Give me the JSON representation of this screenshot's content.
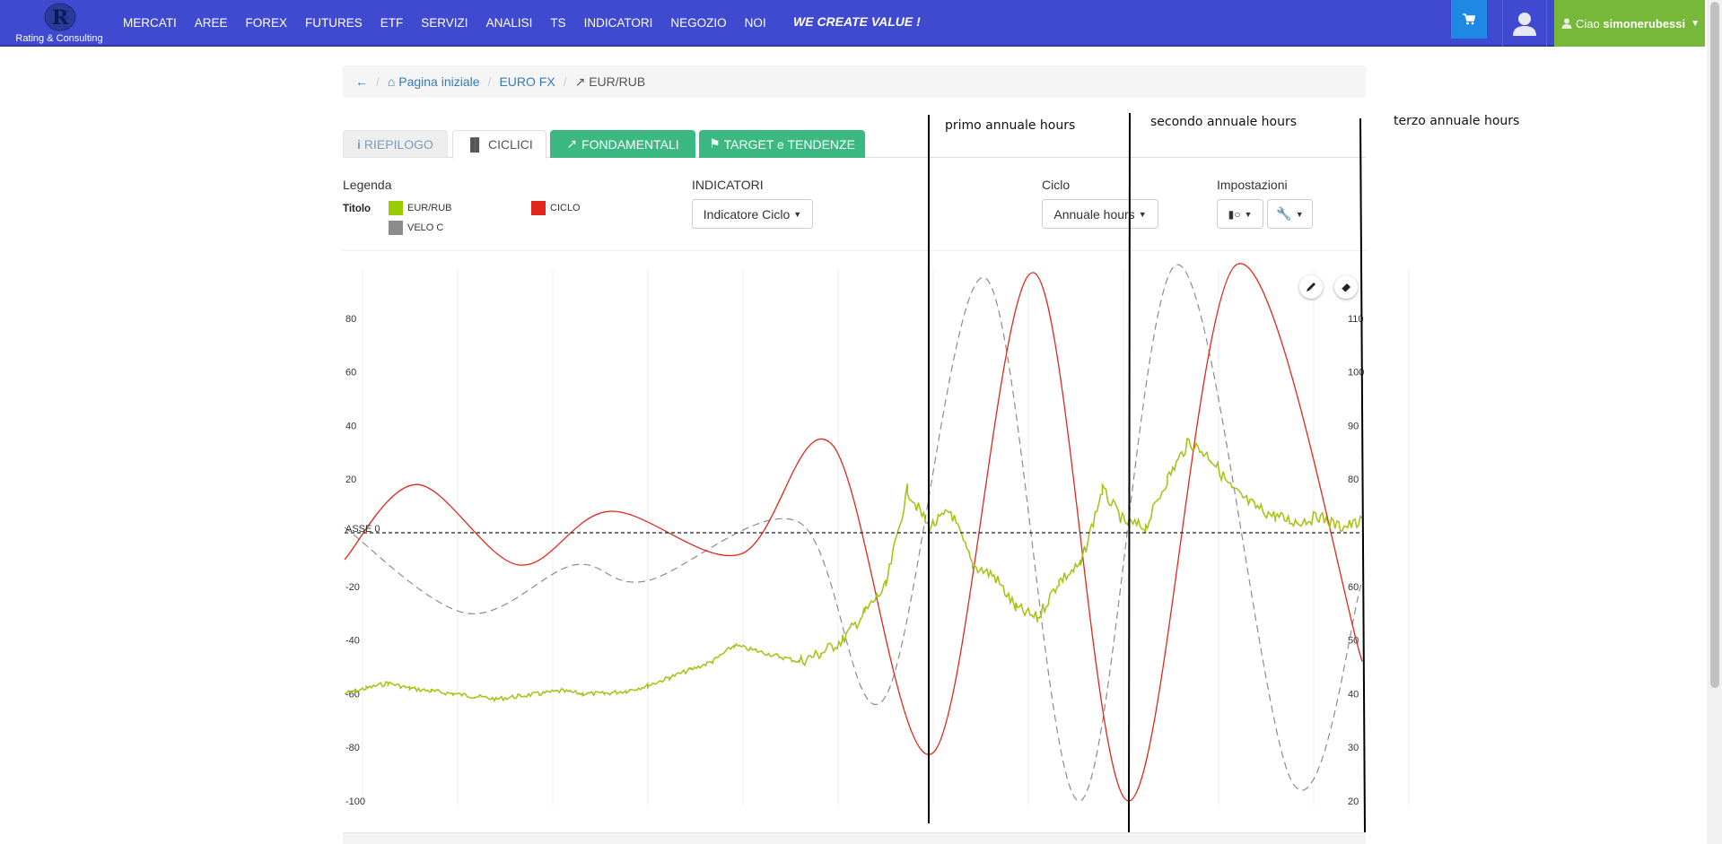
{
  "navbar": {
    "logo_text": "Rating & Consulting",
    "menu": [
      "MERCATI",
      "AREE",
      "FOREX",
      "FUTURES",
      "ETF",
      "SERVIZI",
      "ANALISI",
      "TS",
      "INDICATORI",
      "NEGOZIO",
      "NOI"
    ],
    "slogan": "WE CREATE VALUE !",
    "user_greeting": "Ciao",
    "username": "simonerubessi",
    "cart_icon": "shopping-cart-icon",
    "avatar_icon": "user-avatar-icon"
  },
  "breadcrumb": {
    "back_icon": "arrow-left-icon",
    "home": "Pagina iniziale",
    "section": "EURO FX",
    "current": "EUR/RUB"
  },
  "tabs": {
    "riepilogo": "RIEPILOGO",
    "ciclici": "CICLICI",
    "fondamentali": "FONDAMENTALI",
    "target": "TARGET e TENDENZE",
    "active": "CICLICI"
  },
  "controls": {
    "legend_label": "Legenda",
    "legend_title": "Titolo",
    "legend_items": [
      {
        "name": "EUR/RUB",
        "color": "#99cc00"
      },
      {
        "name": "CICLO",
        "color": "#e3261b"
      },
      {
        "name": "VELO C",
        "color": "#8c8c8c"
      }
    ],
    "indicators_label": "INDICATORI",
    "indicators_value": "Indicatore Ciclo",
    "cycle_label": "Ciclo",
    "cycle_value": "Annuale hours",
    "settings_label": "Impostazioni"
  },
  "annotations": {
    "primo": "primo annuale hours",
    "secondo": "secondo annuale hours",
    "terzo": "terzo annuale hours"
  },
  "chart_data": {
    "type": "line",
    "axis_zero_label": "ASSE 0",
    "left_axis": {
      "ticks": [
        80,
        60,
        40,
        20,
        -20,
        -40,
        -60,
        -80,
        -100
      ],
      "range": [
        -100,
        100
      ]
    },
    "right_axis": {
      "ticks": [
        110,
        100,
        90,
        80,
        60,
        50,
        40,
        30,
        20
      ],
      "range": [
        20,
        120
      ]
    },
    "grid": true,
    "series": [
      {
        "name": "EUR/RUB",
        "color": "#99cc00",
        "axis": "right",
        "values": [
          40,
          41,
          42,
          41,
          40.5,
          40,
          39.5,
          39,
          39.5,
          40,
          40.5,
          40,
          40,
          40.5,
          41.5,
          43,
          44.5,
          46,
          49,
          48,
          47,
          46,
          47.5,
          50,
          55,
          60,
          78,
          71,
          74,
          64,
          62,
          56,
          54,
          61,
          64,
          78,
          72,
          71,
          80,
          87,
          84,
          78,
          75,
          73,
          72,
          73,
          71,
          72
        ]
      },
      {
        "name": "CICLO",
        "color": "#e3261b",
        "axis": "left",
        "values": [
          -10,
          18,
          -12,
          8,
          -8,
          33,
          -82,
          97,
          -100,
          100,
          -48
        ]
      },
      {
        "name": "VELO C",
        "color": "#8c8c8c",
        "axis": "left",
        "values": [
          2,
          -30,
          -12,
          -18,
          4,
          -62,
          95,
          -100,
          100,
          -93,
          -18
        ]
      }
    ]
  }
}
